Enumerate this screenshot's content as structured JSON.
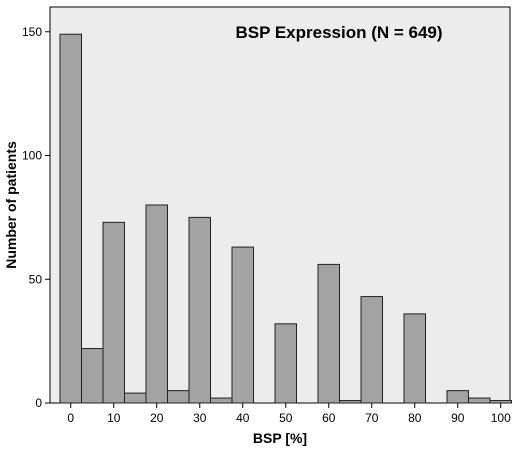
{
  "chart_data": {
    "type": "bar",
    "title": "BSP Expression (N = 649)",
    "xlabel": "BSP [%]",
    "ylabel": "Number of patients",
    "x_ticks": [
      "0",
      "10",
      "20",
      "30",
      "40",
      "50",
      "60",
      "70",
      "80",
      "90",
      "100"
    ],
    "y_ticks": [
      "0",
      "50",
      "100",
      "150"
    ],
    "ylim": [
      0,
      160
    ],
    "xlim": [
      -5,
      105
    ],
    "bar_width": 5,
    "bars": [
      {
        "x": 0,
        "value": 149
      },
      {
        "x": 5,
        "value": 22
      },
      {
        "x": 10,
        "value": 73
      },
      {
        "x": 15,
        "value": 4
      },
      {
        "x": 20,
        "value": 80
      },
      {
        "x": 25,
        "value": 5
      },
      {
        "x": 30,
        "value": 75
      },
      {
        "x": 35,
        "value": 2
      },
      {
        "x": 40,
        "value": 63
      },
      {
        "x": 50,
        "value": 32
      },
      {
        "x": 60,
        "value": 56
      },
      {
        "x": 65,
        "value": 1
      },
      {
        "x": 70,
        "value": 43
      },
      {
        "x": 80,
        "value": 36
      },
      {
        "x": 90,
        "value": 5
      },
      {
        "x": 95,
        "value": 2
      },
      {
        "x": 100,
        "value": 1
      }
    ],
    "grid": false,
    "colors": {
      "plot_background": "#ececec",
      "bar_fill": "#a3a3a3",
      "bar_stroke": "#222222"
    }
  }
}
